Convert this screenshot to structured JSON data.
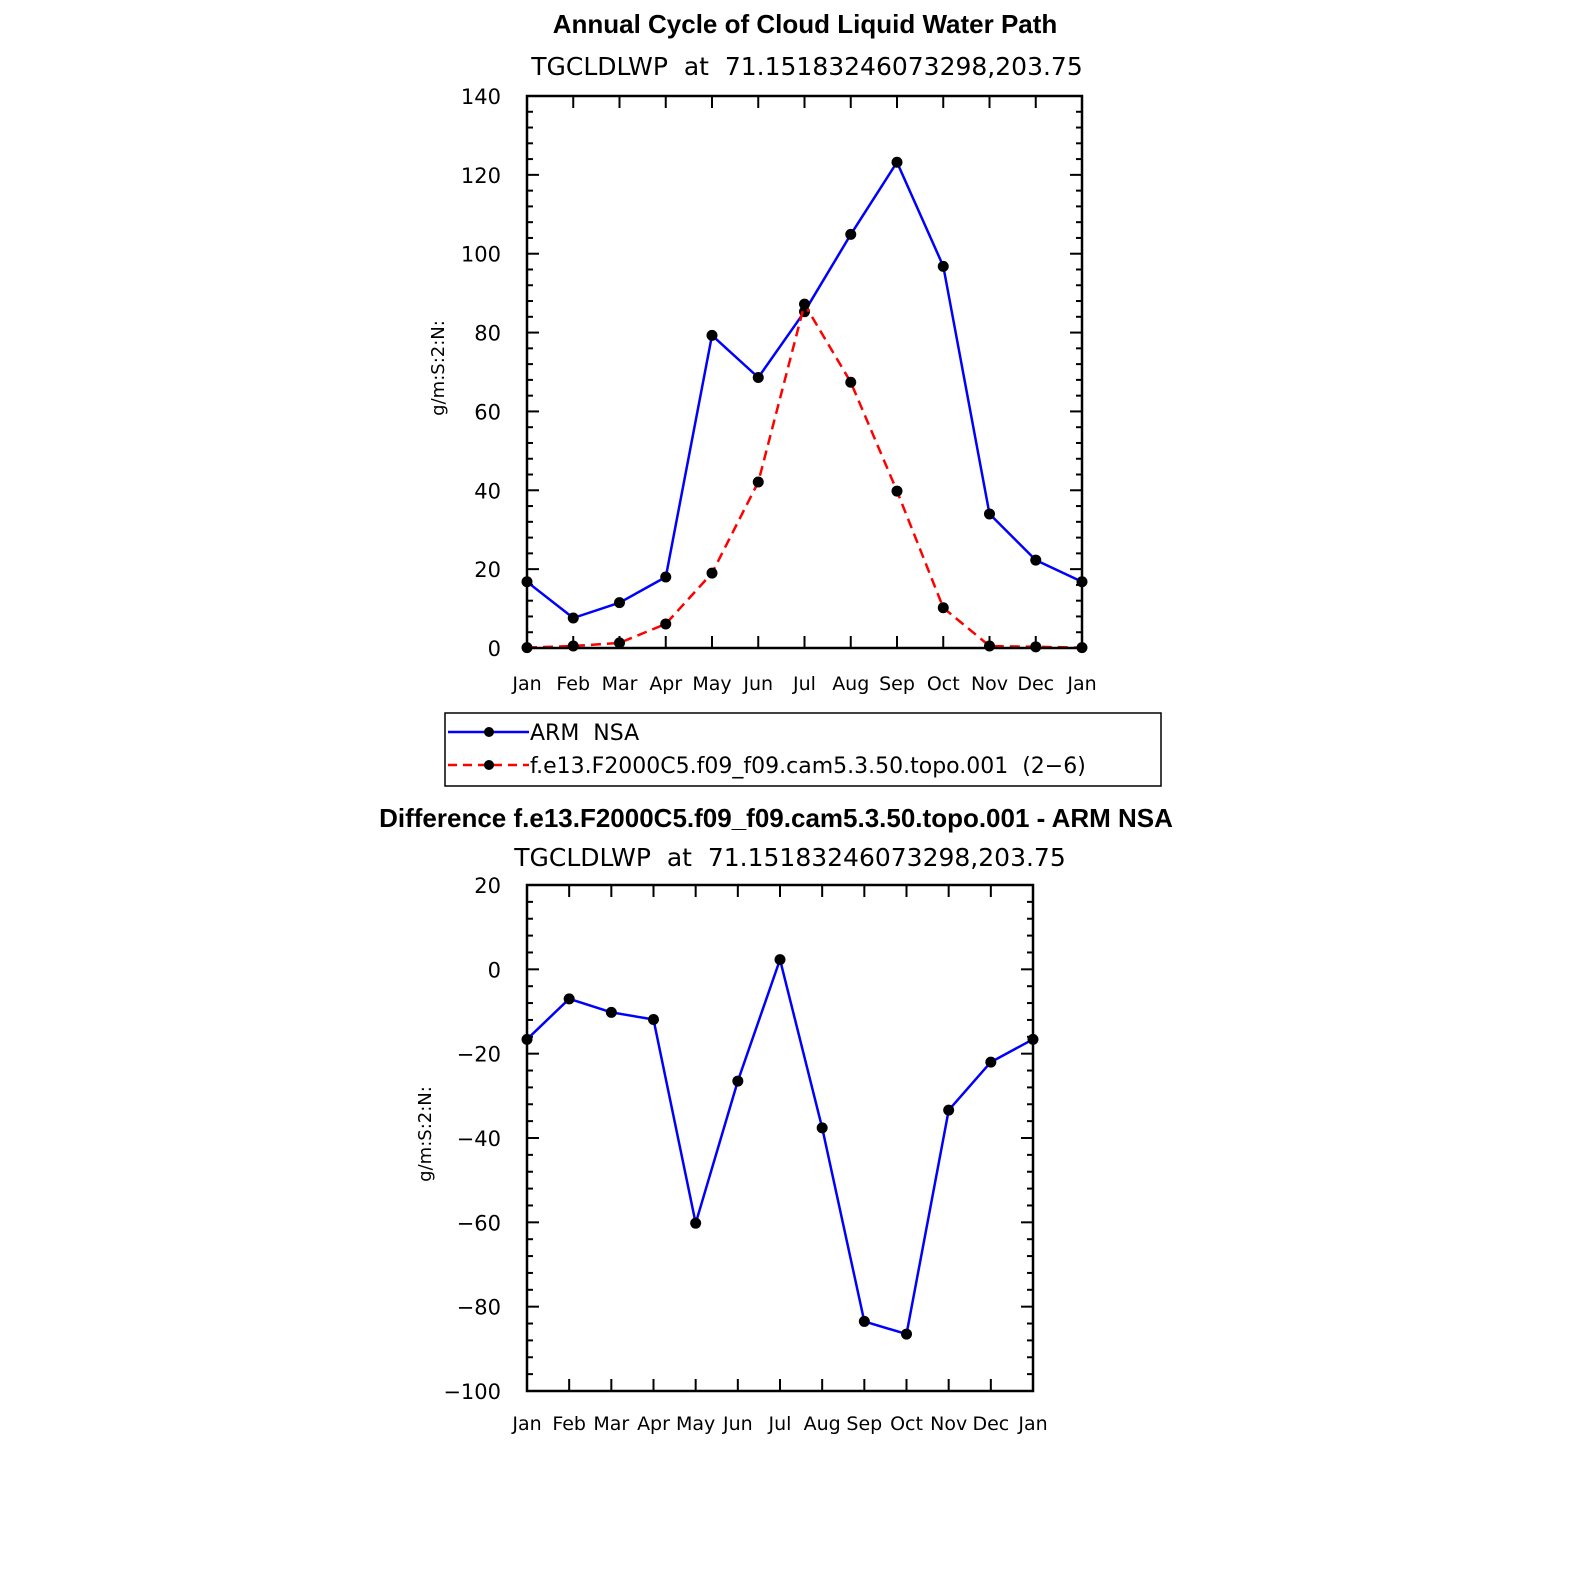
{
  "chart_data": [
    {
      "type": "line",
      "title": "Annual Cycle of Cloud Liquid Water Path",
      "subtitle": "TGCLDLWP  at  71.15183246073298,203.75",
      "xlabel": "",
      "ylabel": "g/m:S:2:N:",
      "ylim": [
        0,
        140
      ],
      "yticks": [
        0,
        20,
        40,
        60,
        80,
        100,
        120,
        140
      ],
      "categories": [
        "Jan",
        "Feb",
        "Mar",
        "Apr",
        "May",
        "Jun",
        "Jul",
        "Aug",
        "Sep",
        "Oct",
        "Nov",
        "Dec",
        "Jan"
      ],
      "series": [
        {
          "name": "ARM  NSA",
          "color": "#0000ff",
          "style": "solid",
          "values": [
            16.8,
            7.6,
            11.5,
            18.0,
            79.3,
            68.6,
            85.3,
            104.9,
            123.2,
            96.8,
            34.0,
            22.3,
            16.8
          ]
        },
        {
          "name": "f.e13.F2000C5.f09_f09.cam5.3.50.topo.001  (2−6)",
          "color": "#ff0000",
          "style": "dashed",
          "values": [
            0.1,
            0.5,
            1.3,
            6.1,
            19.0,
            42.1,
            87.2,
            67.4,
            39.8,
            10.2,
            0.5,
            0.3,
            0.1
          ]
        }
      ],
      "legend": "below"
    },
    {
      "type": "line",
      "title": "Difference f.e13.F2000C5.f09_f09.cam5.3.50.topo.001 - ARM NSA",
      "subtitle": "TGCLDLWP  at  71.15183246073298,203.75",
      "xlabel": "",
      "ylabel": "g/m:S:2:N:",
      "ylim": [
        -100,
        20
      ],
      "yticks": [
        -100,
        -80,
        -60,
        -40,
        -20,
        0,
        20
      ],
      "ytick_labels": [
        "−100",
        "−80",
        "−60",
        "−40",
        "−20",
        "0",
        "20"
      ],
      "categories": [
        "Jan",
        "Feb",
        "Mar",
        "Apr",
        "May",
        "Jun",
        "Jul",
        "Aug",
        "Sep",
        "Oct",
        "Nov",
        "Dec",
        "Jan"
      ],
      "series": [
        {
          "name": "Difference",
          "color": "#0000ff",
          "style": "solid",
          "values": [
            -16.6,
            -7.0,
            -10.2,
            -11.9,
            -60.2,
            -26.5,
            2.3,
            -37.6,
            -83.5,
            -86.5,
            -33.4,
            -22.0,
            -16.6
          ]
        }
      ]
    }
  ]
}
